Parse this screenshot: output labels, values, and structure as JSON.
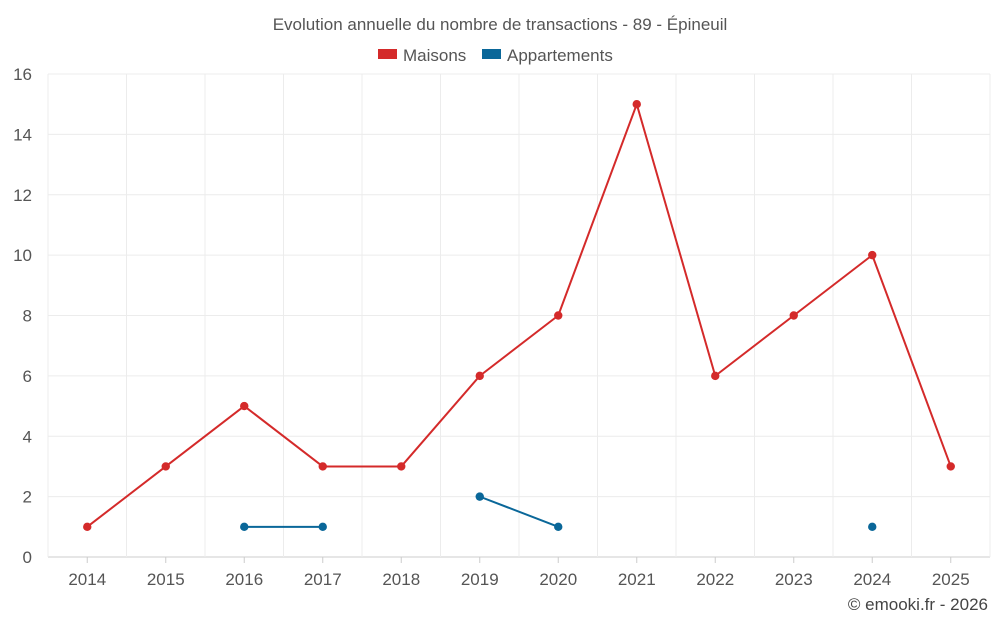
{
  "chart_data": {
    "type": "line",
    "title": "Evolution annuelle du nombre de transactions - 89 - Épineuil",
    "categories": [
      "2014",
      "2015",
      "2016",
      "2017",
      "2018",
      "2019",
      "2020",
      "2021",
      "2022",
      "2023",
      "2024",
      "2025"
    ],
    "series": [
      {
        "name": "Maisons",
        "color": "#d42a2a",
        "values": [
          1,
          3,
          5,
          3,
          3,
          6,
          8,
          15,
          6,
          8,
          10,
          3
        ]
      },
      {
        "name": "Appartements",
        "color": "#0a6799",
        "values": [
          null,
          null,
          1,
          1,
          null,
          2,
          1,
          null,
          null,
          null,
          1,
          null
        ]
      }
    ],
    "ylim": [
      0,
      16
    ],
    "yticks": [
      0,
      2,
      4,
      6,
      8,
      10,
      12,
      14,
      16
    ],
    "grid": true,
    "legend": "top-center",
    "xlabel": "",
    "ylabel": ""
  },
  "credit": "© emooki.fr - 2026"
}
